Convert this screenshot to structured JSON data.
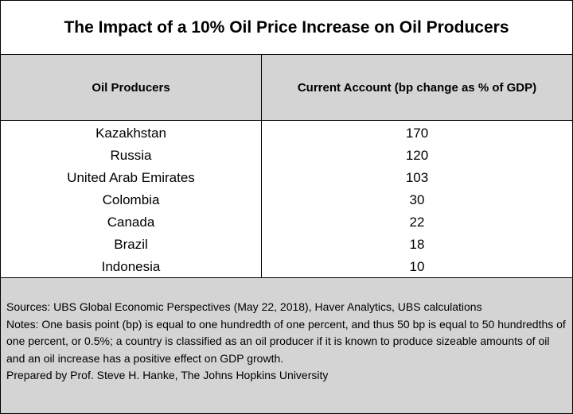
{
  "chart_data": {
    "type": "table",
    "title": "The Impact of a 10% Oil Price Increase on Oil Producers",
    "columns": [
      "Oil Producers",
      "Current Account (bp change as % of GDP)"
    ],
    "rows": [
      {
        "country": "Kazakhstan",
        "value": "170"
      },
      {
        "country": "Russia",
        "value": "120"
      },
      {
        "country": "United Arab Emirates",
        "value": "103"
      },
      {
        "country": "Colombia",
        "value": "30"
      },
      {
        "country": "Canada",
        "value": "22"
      },
      {
        "country": "Brazil",
        "value": "18"
      },
      {
        "country": "Indonesia",
        "value": "10"
      }
    ]
  },
  "footer": {
    "sources": "Sources: UBS Global Economic Perspectives (May 22, 2018), Haver Analytics, UBS calculations",
    "notes": "Notes: One basis point (bp) is equal to one hundredth of one percent, and thus 50 bp is equal to 50 hundredths of one percent, or 0.5%; a country is classified as an oil producer if it is known to produce sizeable amounts of oil and an oil increase has a positive effect on GDP growth.",
    "prepared_by": "Prepared by Prof. Steve H. Hanke, The Johns Hopkins University"
  },
  "colors": {
    "header_bg": "#d4d4d4",
    "footer_bg": "#d4d4d4",
    "border": "#000000"
  }
}
